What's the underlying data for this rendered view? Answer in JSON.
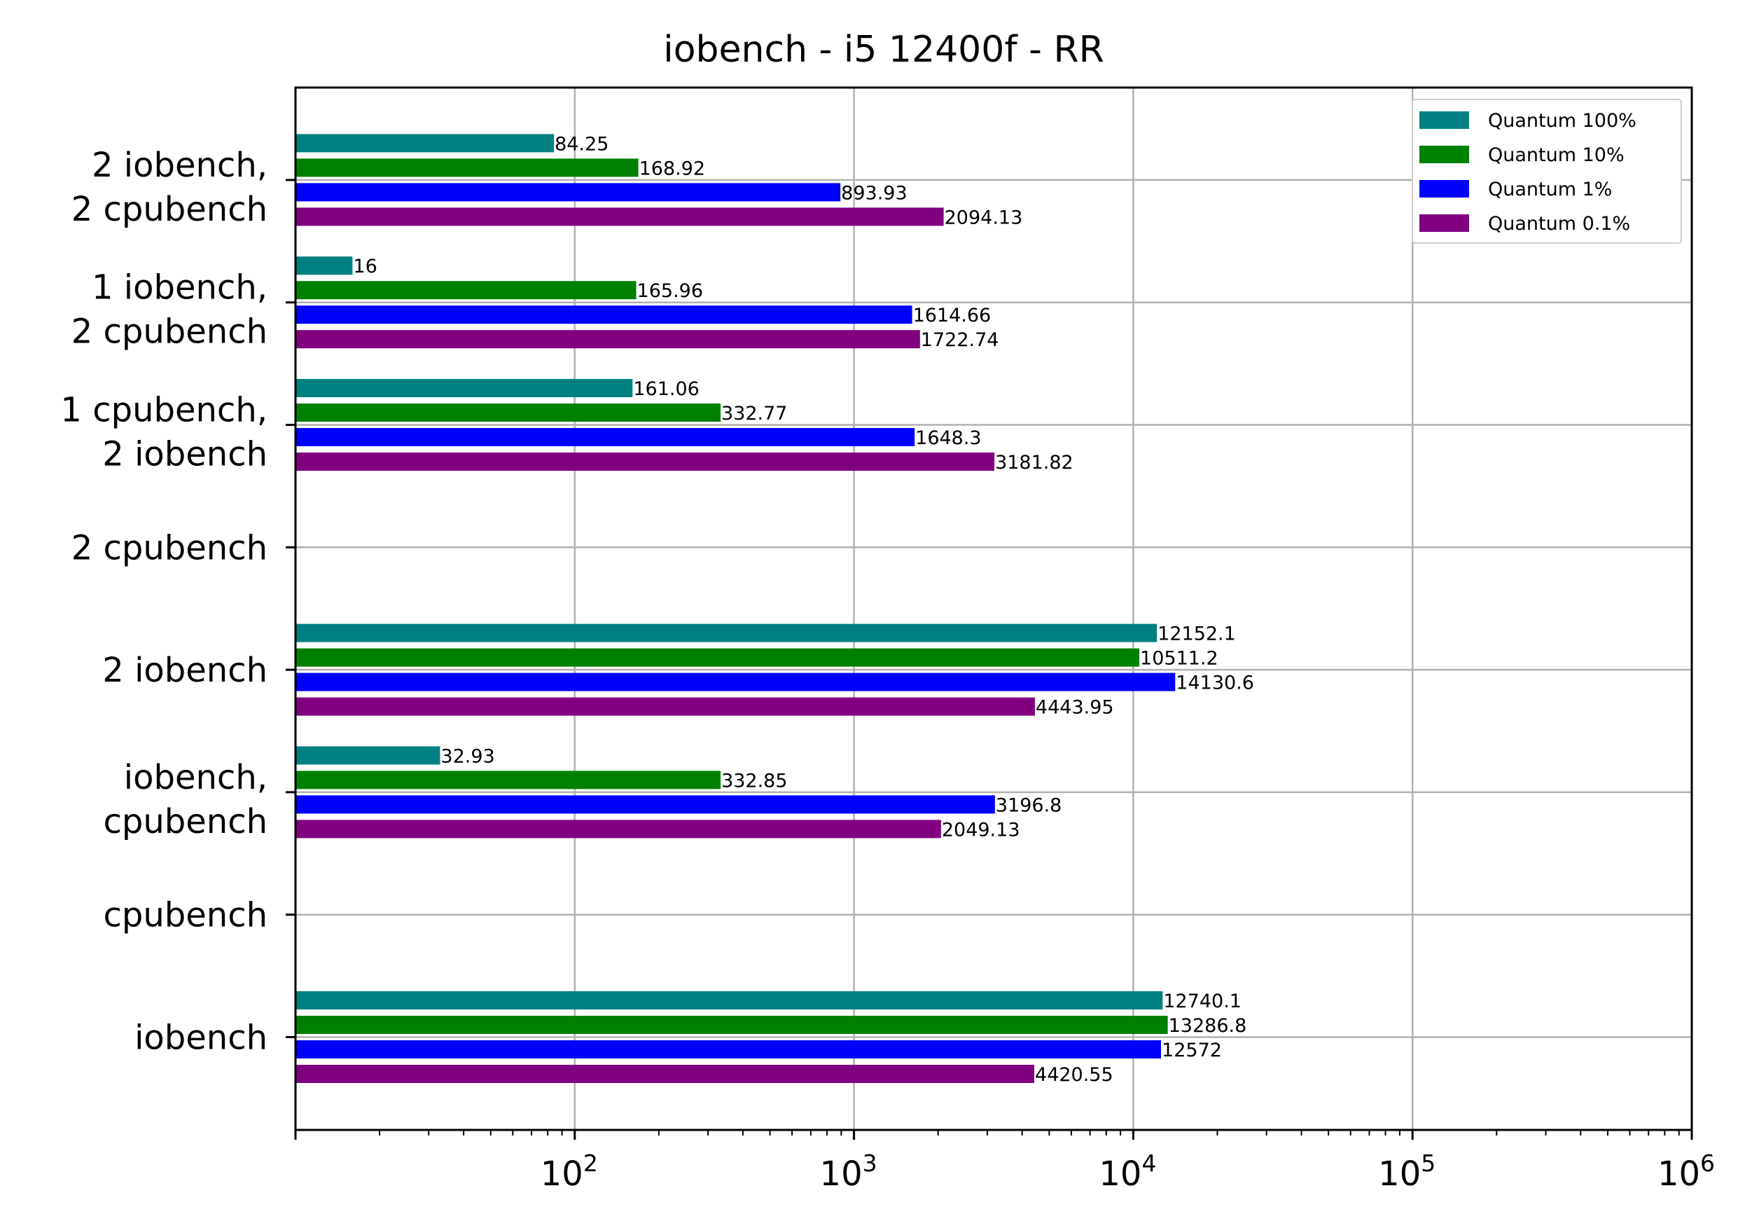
{
  "chart_data": {
    "type": "bar",
    "orientation": "horizontal",
    "title": "iobench - i5 12400f - RR",
    "xlabel": "",
    "ylabel": "",
    "xscale": "log",
    "xlim": [
      10,
      1000000
    ],
    "x_ticks": [
      {
        "base": "10",
        "exp": "2"
      },
      {
        "base": "10",
        "exp": "3"
      },
      {
        "base": "10",
        "exp": "4"
      },
      {
        "base": "10",
        "exp": "5"
      },
      {
        "base": "10",
        "exp": "6"
      }
    ],
    "grid": true,
    "legend_position": "top-right",
    "categories": [
      [
        "2 iobench,",
        "2 cpubench"
      ],
      [
        "1 iobench,",
        "2 cpubench"
      ],
      [
        "1 cpubench,",
        "2 iobench"
      ],
      [
        "2 cpubench"
      ],
      [
        "2 iobench"
      ],
      [
        "iobench,",
        "cpubench"
      ],
      [
        "cpubench"
      ],
      [
        "iobench"
      ]
    ],
    "series": [
      {
        "name": "Quantum 100%",
        "color": "#008080",
        "values": [
          84.25,
          16,
          161.06,
          null,
          12152.1,
          32.93,
          null,
          12740.1
        ],
        "labels": [
          "84.25",
          "16",
          "161.06",
          "",
          "12152.1",
          "32.93",
          "",
          "12740.1"
        ]
      },
      {
        "name": "Quantum 10%",
        "color": "#008000",
        "values": [
          168.92,
          165.96,
          332.77,
          null,
          10511.2,
          332.85,
          null,
          13286.8
        ],
        "labels": [
          "168.92",
          "165.96",
          "332.77",
          "",
          "10511.2",
          "332.85",
          "",
          "13286.8"
        ]
      },
      {
        "name": "Quantum 1%",
        "color": "#0000ff",
        "values": [
          893.93,
          1614.66,
          1648.3,
          null,
          14130.6,
          3196.8,
          null,
          12572
        ],
        "labels": [
          "893.93",
          "1614.66",
          "1648.3",
          "",
          "14130.6",
          "3196.8",
          "",
          "12572"
        ]
      },
      {
        "name": "Quantum 0.1%",
        "color": "#800080",
        "values": [
          2094.13,
          1722.74,
          3181.82,
          null,
          4443.95,
          2049.13,
          null,
          4420.55
        ],
        "labels": [
          "2094.13",
          "1722.74",
          "3181.82",
          "",
          "4443.95",
          "2049.13",
          "",
          "4420.55"
        ]
      }
    ]
  }
}
